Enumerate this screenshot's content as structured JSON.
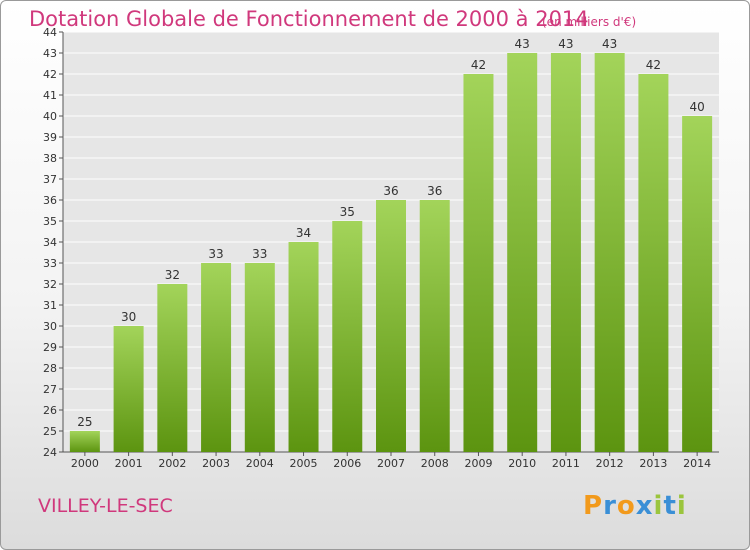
{
  "chart_data": {
    "type": "bar",
    "title": "Dotation Globale de Fonctionnement de 2000 à 2014",
    "subtitle": "(en milliers d'€)",
    "categories": [
      "2000",
      "2001",
      "2002",
      "2003",
      "2004",
      "2005",
      "2006",
      "2007",
      "2008",
      "2009",
      "2010",
      "2011",
      "2012",
      "2013",
      "2014"
    ],
    "values": [
      25,
      30,
      32,
      33,
      33,
      34,
      35,
      36,
      36,
      42,
      43,
      43,
      43,
      42,
      40
    ],
    "xlabel": "",
    "ylabel": "",
    "ylim": [
      24,
      44
    ],
    "yticks": [
      24,
      25,
      26,
      27,
      28,
      29,
      30,
      31,
      32,
      33,
      34,
      35,
      36,
      37,
      38,
      39,
      40,
      41,
      42,
      43,
      44
    ],
    "grid": true,
    "legend": "none",
    "bar_color_top": "#a3d45a",
    "bar_color_bottom": "#5c9410",
    "grid_color": "#ffffff",
    "plot_bg": "#e6e6e6"
  },
  "footer": {
    "place": "VILLEY-LE-SEC",
    "logo_letters": [
      "P",
      "r",
      "o",
      "x",
      "i",
      "t",
      "i"
    ],
    "logo_colors": [
      "#f29a1c",
      "#3a8fd6",
      "#f29a1c",
      "#3a8fd6",
      "#9bc53d",
      "#3a8fd6",
      "#9bc53d"
    ]
  }
}
